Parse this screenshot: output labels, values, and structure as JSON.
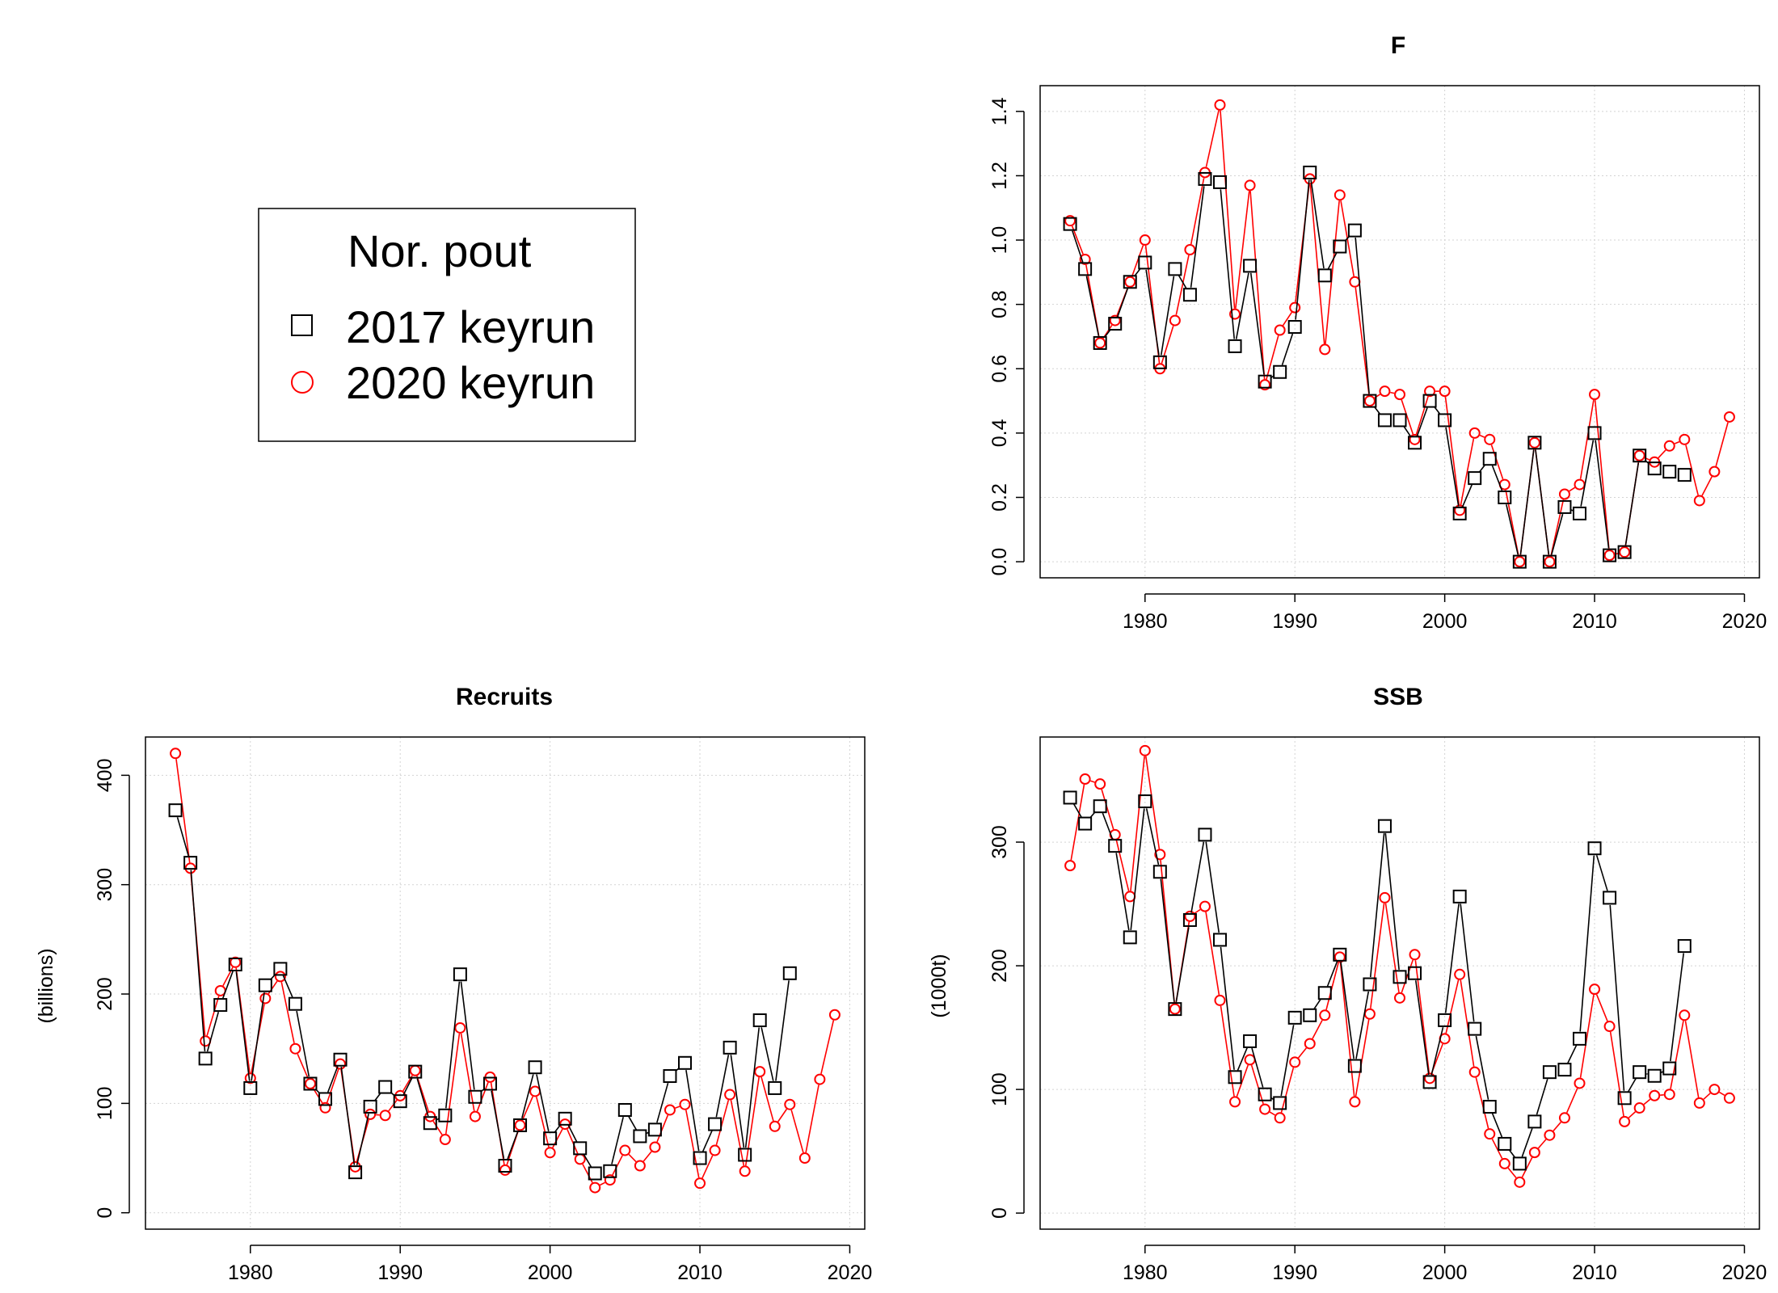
{
  "legend": {
    "title": "Nor. pout",
    "items": [
      {
        "label": "2017 keyrun",
        "marker": "square",
        "color": "#000000"
      },
      {
        "label": "2020 keyrun",
        "marker": "circle",
        "color": "#ff0000"
      }
    ]
  },
  "colors": {
    "run2017": "#000000",
    "run2020": "#ff0000",
    "grid": "#d3d3d3"
  },
  "chart_data": [
    {
      "type": "line",
      "id": "F",
      "title": "F",
      "xlabel": "",
      "ylabel": "",
      "xlim": [
        1973,
        2021
      ],
      "ylim": [
        -0.05,
        1.48
      ],
      "xticks": [
        1980,
        1990,
        2000,
        2010,
        2020
      ],
      "yticks": [
        0.0,
        0.2,
        0.4,
        0.6,
        0.8,
        1.0,
        1.2,
        1.4
      ],
      "ytick_labels": [
        "0.0",
        "0.2",
        "0.4",
        "0.6",
        "0.8",
        "1.0",
        "1.2",
        "1.4"
      ],
      "grid": true,
      "series": [
        {
          "name": "2017 keyrun",
          "x_start": 1975,
          "values": [
            1.05,
            0.91,
            0.68,
            0.74,
            0.87,
            0.93,
            0.62,
            0.91,
            0.83,
            1.19,
            1.18,
            0.67,
            0.92,
            0.56,
            0.59,
            0.73,
            1.21,
            0.89,
            0.98,
            1.03,
            0.5,
            0.44,
            0.44,
            0.37,
            0.5,
            0.44,
            0.15,
            0.26,
            0.32,
            0.2,
            0.0,
            0.37,
            0.0,
            0.17,
            0.15,
            0.4,
            0.02,
            0.03,
            0.33,
            0.29,
            0.28,
            0.27
          ]
        },
        {
          "name": "2020 keyrun",
          "x_start": 1975,
          "values": [
            1.06,
            0.94,
            0.68,
            0.75,
            0.87,
            1.0,
            0.6,
            0.75,
            0.97,
            1.21,
            1.42,
            0.77,
            1.17,
            0.55,
            0.72,
            0.79,
            1.19,
            0.66,
            1.14,
            0.87,
            0.5,
            0.53,
            0.52,
            0.38,
            0.53,
            0.53,
            0.16,
            0.4,
            0.38,
            0.24,
            0.0,
            0.37,
            0.0,
            0.21,
            0.24,
            0.52,
            0.02,
            0.03,
            0.33,
            0.31,
            0.36,
            0.38,
            0.19,
            0.28,
            0.45
          ]
        }
      ]
    },
    {
      "type": "line",
      "id": "recruits",
      "title": "Recruits",
      "xlabel": "",
      "ylabel": "(billions)",
      "xlim": [
        1973,
        2021
      ],
      "ylim": [
        -15,
        435
      ],
      "xticks": [
        1980,
        1990,
        2000,
        2010,
        2020
      ],
      "yticks": [
        0,
        100,
        200,
        300,
        400
      ],
      "ytick_labels": [
        "0",
        "100",
        "200",
        "300",
        "400"
      ],
      "grid": true,
      "series": [
        {
          "name": "2017 keyrun",
          "x_start": 1975,
          "values": [
            368,
            320,
            141,
            190,
            227,
            114,
            208,
            223,
            191,
            118,
            104,
            140,
            37,
            97,
            115,
            102,
            129,
            82,
            89,
            218,
            106,
            118,
            43,
            80,
            133,
            68,
            86,
            59,
            36,
            38,
            94,
            70,
            76,
            125,
            137,
            50,
            81,
            151,
            53,
            176,
            114,
            219
          ]
        },
        {
          "name": "2020 keyrun",
          "x_start": 1975,
          "values": [
            420,
            315,
            157,
            203,
            229,
            123,
            196,
            216,
            150,
            118,
            96,
            136,
            42,
            90,
            89,
            107,
            130,
            88,
            67,
            169,
            88,
            124,
            39,
            80,
            111,
            55,
            81,
            49,
            23,
            30,
            57,
            43,
            60,
            94,
            99,
            27,
            57,
            108,
            38,
            129,
            79,
            99,
            50,
            122,
            181
          ]
        }
      ]
    },
    {
      "type": "line",
      "id": "SSB",
      "title": "SSB",
      "xlabel": "",
      "ylabel": "(1000t)",
      "xlim": [
        1973,
        2021
      ],
      "ylim": [
        -13,
        385
      ],
      "xticks": [
        1980,
        1990,
        2000,
        2010,
        2020
      ],
      "yticks": [
        0,
        100,
        200,
        300
      ],
      "ytick_labels": [
        "0",
        "100",
        "200",
        "300"
      ],
      "grid": true,
      "series": [
        {
          "name": "2017 keyrun",
          "x_start": 1975,
          "values": [
            336,
            315,
            329,
            297,
            223,
            333,
            276,
            165,
            237,
            306,
            221,
            110,
            139,
            96,
            89,
            158,
            160,
            178,
            209,
            119,
            185,
            313,
            191,
            194,
            106,
            156,
            256,
            149,
            86,
            56,
            40,
            74,
            114,
            116,
            141,
            295,
            255,
            93,
            114,
            111,
            117,
            216
          ]
        },
        {
          "name": "2020 keyrun",
          "x_start": 1975,
          "values": [
            281,
            351,
            347,
            306,
            256,
            374,
            290,
            165,
            240,
            248,
            172,
            90,
            124,
            84,
            77,
            122,
            137,
            160,
            207,
            90,
            161,
            255,
            174,
            209,
            109,
            141,
            193,
            114,
            64,
            40,
            25,
            49,
            63,
            77,
            105,
            181,
            151,
            74,
            85,
            95,
            96,
            160,
            89,
            100,
            93
          ]
        }
      ]
    }
  ]
}
